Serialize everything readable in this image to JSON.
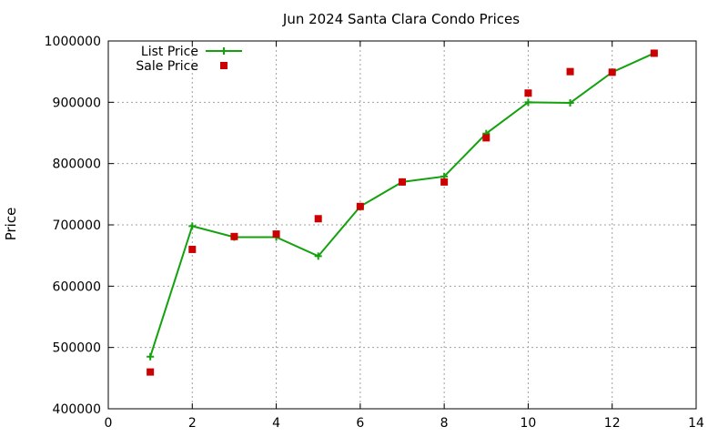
{
  "chart_data": {
    "type": "line",
    "title": "Jun 2024 Santa Clara Condo Prices",
    "xlabel": "",
    "ylabel": "Price",
    "xlim": [
      0,
      14
    ],
    "ylim": [
      400000,
      1000000
    ],
    "xticks": [
      0,
      2,
      4,
      6,
      8,
      10,
      12,
      14
    ],
    "yticks": [
      400000,
      500000,
      600000,
      700000,
      800000,
      900000,
      1000000
    ],
    "grid": true,
    "legend_position": "top-left",
    "series": [
      {
        "name": "List Price",
        "style": "line-with-plus-markers",
        "color": "#13a10e",
        "x": [
          1,
          2,
          3,
          4,
          5,
          6,
          7,
          8,
          9,
          10,
          11,
          12,
          13
        ],
        "y": [
          485000,
          698000,
          680000,
          680000,
          649000,
          730000,
          770000,
          779000,
          849000,
          900000,
          899000,
          949000,
          980000
        ]
      },
      {
        "name": "Sale Price",
        "style": "square-markers",
        "color": "#cc0000",
        "x": [
          1,
          2,
          3,
          4,
          5,
          6,
          7,
          8,
          9,
          10,
          11,
          12,
          13
        ],
        "y": [
          460000,
          660000,
          681000,
          685000,
          710000,
          730000,
          770000,
          770000,
          842000,
          915000,
          950000,
          949000,
          980000
        ]
      }
    ]
  }
}
